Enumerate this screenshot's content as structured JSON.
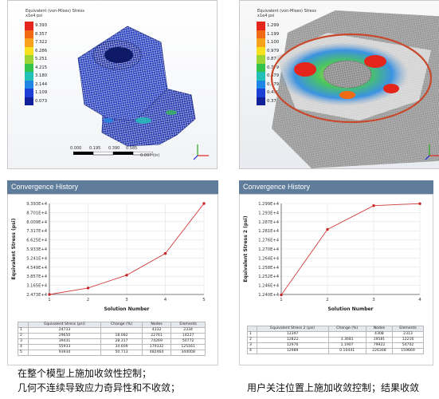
{
  "left_view": {
    "title": "Equivalent (von-Mises) Stress",
    "units": "x1e4 psi",
    "legend": [
      "9.393",
      "8.357",
      "7.322",
      "6.286",
      "5.251",
      "4.215",
      "3.180",
      "2.144",
      "1.109",
      "0.073"
    ],
    "legend_colors": [
      "#e4251b",
      "#f06a13",
      "#f6a21a",
      "#f7e11e",
      "#9bd433",
      "#33c24b",
      "#22c0b6",
      "#1f86e4",
      "#1c3fd6",
      "#12209a"
    ],
    "scale_labels": [
      "0.000",
      "0.195",
      "0.390",
      "0.585",
      "0.097 (in)"
    ]
  },
  "right_view": {
    "title": "Equivalent (von-Mises) Stress",
    "units": "x1e4 psi",
    "legend": [
      "1.299",
      "1.199",
      "1.100",
      "0.979",
      "0.879",
      "0.779",
      "0.679",
      "0.579",
      "0.479",
      "0.379"
    ],
    "legend_colors": [
      "#e4251b",
      "#f06a13",
      "#f6a21a",
      "#f7e11e",
      "#9bd433",
      "#33c24b",
      "#22c0b6",
      "#1f86e4",
      "#1c3fd6",
      "#12209a"
    ]
  },
  "left_panel": {
    "header": "Convergence History",
    "table": {
      "headers": [
        "",
        "Equivalent Stress (psi)",
        "Change (%)",
        "Nodes",
        "Elements"
      ],
      "rows": [
        [
          "1",
          "24733",
          "",
          "4332",
          "2334"
        ],
        [
          "2",
          "29650",
          "18.082",
          "22761",
          "14227"
        ],
        [
          "3",
          "39431",
          "28.317",
          "74269",
          "50772"
        ],
        [
          "4",
          "55933",
          "34.609",
          "179332",
          "125161"
        ],
        [
          "5",
          "93934",
          "50.713",
          "482464",
          "344008"
        ]
      ]
    }
  },
  "right_panel": {
    "header": "Convergence History",
    "table": {
      "headers": [
        "",
        "Equivalent Stress 2 (psi)",
        "Change (%)",
        "Nodes",
        "Elements"
      ],
      "rows": [
        [
          "1",
          "12397",
          "",
          "4308",
          "2313"
        ],
        [
          "2",
          "12822",
          "3.3681",
          "19581",
          "12216"
        ],
        [
          "3",
          "12976",
          "1.1907",
          "79922",
          "54702"
        ],
        [
          "4",
          "12989",
          "0.10441",
          "226308",
          "159669"
        ]
      ]
    }
  },
  "captions": {
    "left_line1": "在整个模型上施加收敛性控制；",
    "left_line2": "几何不连续导致应力奇异性和不收敛；",
    "right_line1": "用户关注位置上施加收敛控制；结果收敛"
  },
  "chart_data": [
    {
      "type": "line",
      "xlabel": "Solution Number",
      "ylabel": "Equivalent Stress (psi)",
      "x": [
        1,
        2,
        3,
        4,
        5
      ],
      "y": [
        24733,
        29650,
        39431,
        55933,
        93934
      ],
      "xlim": [
        1,
        5
      ],
      "ylim": [
        24730,
        93930
      ],
      "yticks": [
        "9.393E+4",
        "8.701E+4",
        "8.009E+4",
        "7.317E+4",
        "6.625E+4",
        "5.933E+4",
        "5.241E+4",
        "4.549E+4",
        "3.857E+4",
        "3.165E+4",
        "2.473E+4"
      ],
      "xticks": [
        "1",
        "2",
        "3",
        "4",
        "5"
      ],
      "grid": true,
      "line_color": "#d23c3c"
    },
    {
      "type": "line",
      "xlabel": "Solution Number",
      "ylabel": "Equivalent Stress 2 (psi)",
      "x": [
        1,
        2,
        3,
        4
      ],
      "y": [
        12397,
        12822,
        12976,
        12989
      ],
      "xlim": [
        1,
        4
      ],
      "ylim": [
        12400,
        12990
      ],
      "yticks": [
        "1.299E+4",
        "1.293E+4",
        "1.287E+4",
        "1.281E+4",
        "1.276E+4",
        "1.270E+4",
        "1.264E+4",
        "1.258E+4",
        "1.252E+4",
        "1.246E+4",
        "1.240E+4"
      ],
      "xticks": [
        "1",
        "2",
        "3",
        "4"
      ],
      "grid": true,
      "line_color": "#d23c3c"
    }
  ]
}
